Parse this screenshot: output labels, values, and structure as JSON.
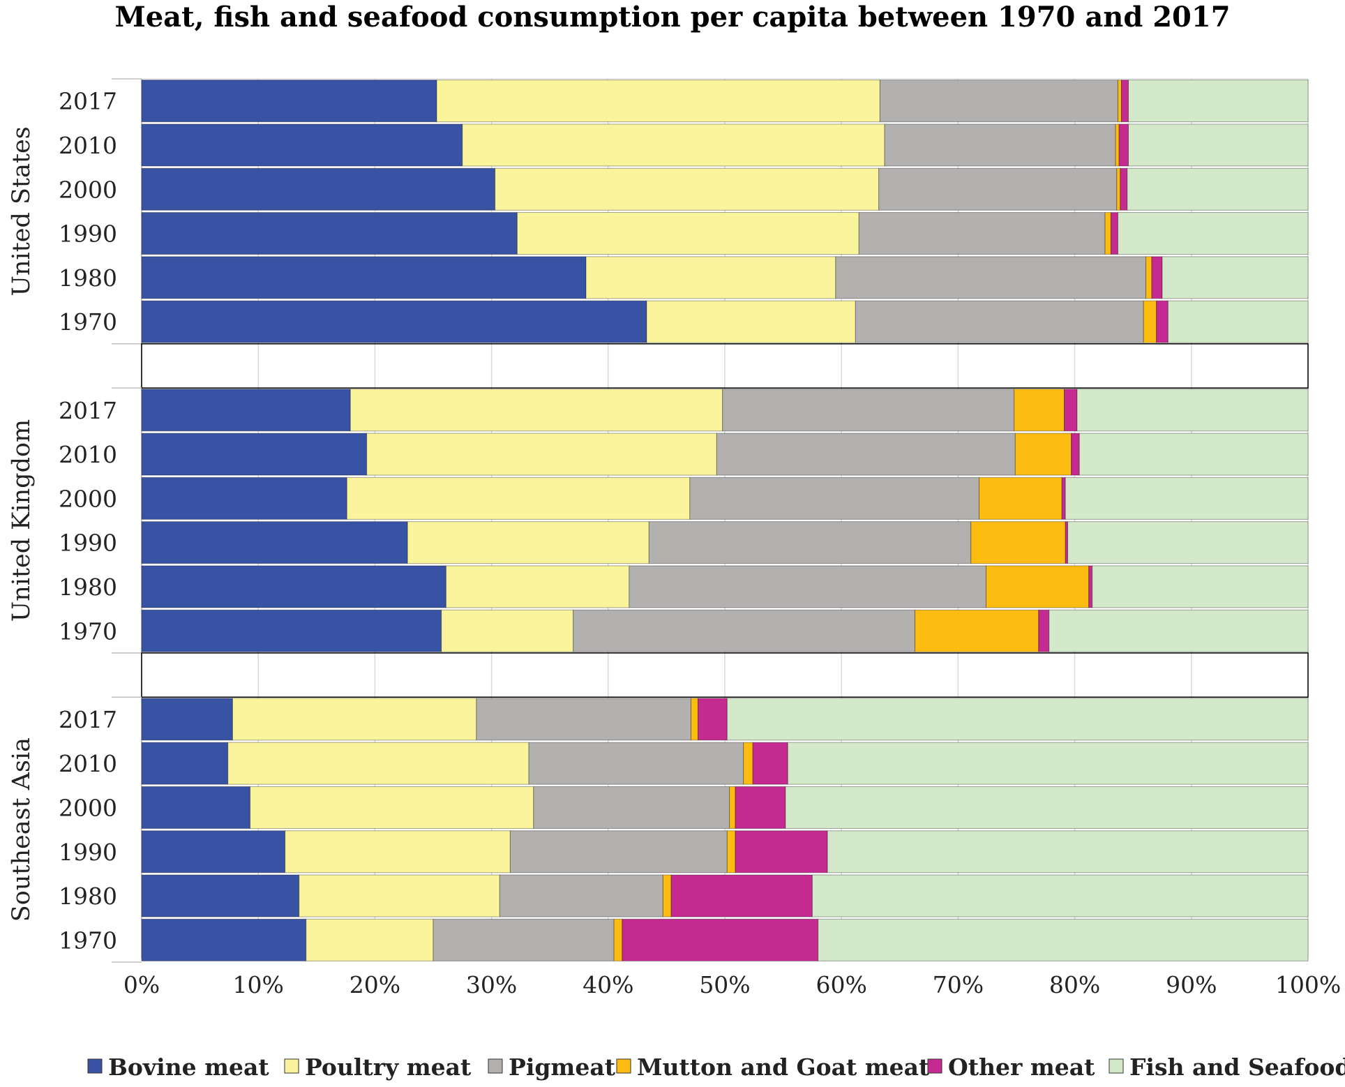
{
  "chart_data": {
    "type": "bar",
    "orientation": "horizontal",
    "stacked": "percent",
    "title": "Meat, fish and seafood consumption per capita between 1970 and 2017",
    "xlabel": "",
    "ylabel": "",
    "xlim": [
      0,
      100
    ],
    "x_ticks": [
      "0%",
      "10%",
      "20%",
      "30%",
      "40%",
      "50%",
      "60%",
      "70%",
      "80%",
      "90%",
      "100%"
    ],
    "grid": true,
    "legend_position": "bottom",
    "groups": [
      "United States",
      "United Kingdom",
      "Southeast Asia"
    ],
    "categories": [
      "2017",
      "2010",
      "2000",
      "1990",
      "1980",
      "1970"
    ],
    "series": [
      {
        "name": "Bovine meat",
        "color": "#3953a4"
      },
      {
        "name": "Poultry meat",
        "color": "#faf59c"
      },
      {
        "name": "Pigmeat",
        "color": "#b3b0b0"
      },
      {
        "name": "Mutton and Goat meat",
        "color": "#fcbc11"
      },
      {
        "name": "Other meat",
        "color": "#c42a8f"
      },
      {
        "name": "Fish and Seafood",
        "color": "#d3e9c9"
      }
    ],
    "data": [
      {
        "group": "United States",
        "rows": [
          {
            "year": "2017",
            "values": [
              25.3,
              38.0,
              20.4,
              0.3,
              0.6,
              15.4
            ]
          },
          {
            "year": "2010",
            "values": [
              27.5,
              36.2,
              19.8,
              0.3,
              0.8,
              15.4
            ]
          },
          {
            "year": "2000",
            "values": [
              30.3,
              32.9,
              20.4,
              0.3,
              0.6,
              15.5
            ]
          },
          {
            "year": "1990",
            "values": [
              32.2,
              29.3,
              21.1,
              0.5,
              0.6,
              16.3
            ]
          },
          {
            "year": "1980",
            "values": [
              38.1,
              21.4,
              26.6,
              0.5,
              0.9,
              12.5
            ]
          },
          {
            "year": "1970",
            "values": [
              43.3,
              17.9,
              24.7,
              1.1,
              1.0,
              12.0
            ]
          }
        ]
      },
      {
        "group": "United Kingdom",
        "rows": [
          {
            "year": "2017",
            "values": [
              17.9,
              31.9,
              25.0,
              4.3,
              1.1,
              19.8
            ]
          },
          {
            "year": "2010",
            "values": [
              19.3,
              30.0,
              25.6,
              4.8,
              0.7,
              19.6
            ]
          },
          {
            "year": "2000",
            "values": [
              17.6,
              29.4,
              24.8,
              7.1,
              0.3,
              20.8
            ]
          },
          {
            "year": "1990",
            "values": [
              22.8,
              20.7,
              27.6,
              8.1,
              0.2,
              20.6
            ]
          },
          {
            "year": "1980",
            "values": [
              26.1,
              15.7,
              30.6,
              8.8,
              0.3,
              18.5
            ]
          },
          {
            "year": "1970",
            "values": [
              25.7,
              11.3,
              29.3,
              10.6,
              0.9,
              22.2
            ]
          }
        ]
      },
      {
        "group": "Southeast Asia",
        "rows": [
          {
            "year": "2017",
            "values": [
              7.8,
              20.9,
              18.4,
              0.6,
              2.5,
              49.8
            ]
          },
          {
            "year": "2010",
            "values": [
              7.4,
              25.8,
              18.4,
              0.8,
              3.0,
              44.6
            ]
          },
          {
            "year": "2000",
            "values": [
              9.3,
              24.3,
              16.8,
              0.5,
              4.3,
              44.8
            ]
          },
          {
            "year": "1990",
            "values": [
              12.3,
              19.3,
              18.6,
              0.7,
              7.9,
              41.2
            ]
          },
          {
            "year": "1980",
            "values": [
              13.5,
              17.2,
              14.0,
              0.7,
              12.1,
              42.5
            ]
          },
          {
            "year": "1970",
            "values": [
              14.1,
              10.9,
              15.5,
              0.7,
              16.8,
              42.0
            ]
          }
        ]
      }
    ]
  }
}
